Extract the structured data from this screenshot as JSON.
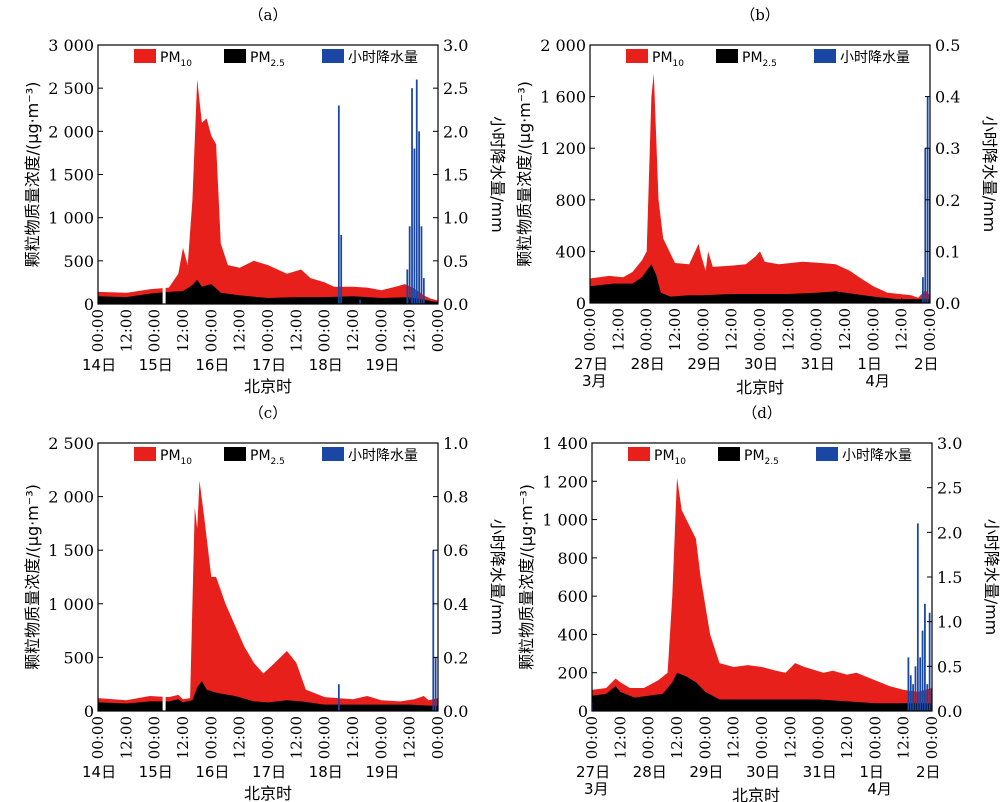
{
  "legend": {
    "pm10": "PM",
    "pm10_sub": "10",
    "pm25": "PM",
    "pm25_sub": "2.5",
    "precip": "小时降水量"
  },
  "colors": {
    "pm10": "#e8201c",
    "pm25": "#000000",
    "precip": "#1a47a3"
  },
  "chart_data": [
    {
      "panel": "（a）",
      "type": "area",
      "ylabel": "颗粒物质量浓度/(μg·m⁻³)",
      "y2label": "小时降水量/mm",
      "xlabel": "北京时",
      "ylim": [
        0,
        3000
      ],
      "yticks": [
        0,
        500,
        1000,
        1500,
        2000,
        2500,
        3000
      ],
      "ytick_labels": [
        "0",
        "500",
        "1 000",
        "1 500",
        "2 000",
        "2 500",
        "3 000"
      ],
      "y2lim": [
        0,
        3.0
      ],
      "y2ticks": [
        0,
        0.5,
        1.0,
        1.5,
        2.0,
        2.5,
        3.0
      ],
      "y2tick_labels": [
        "0.0",
        "0.5",
        "1.0",
        "1.5",
        "2.0",
        "2.5",
        "3.0"
      ],
      "xlim": [
        0,
        144
      ],
      "xticks": [
        0,
        12,
        24,
        36,
        48,
        60,
        72,
        84,
        96,
        108,
        120,
        132,
        144
      ],
      "xtick_labels": [
        "00:00",
        "12:00",
        "00:00",
        "12:00",
        "00:00",
        "12:00",
        "00:00",
        "12:00",
        "00:00",
        "12:00",
        "00:00",
        "12:00",
        "00:00"
      ],
      "day_labels": [
        {
          "h": 0,
          "t": "14日"
        },
        {
          "h": 24,
          "t": "15日"
        },
        {
          "h": 48,
          "t": "16日"
        },
        {
          "h": 72,
          "t": "17日"
        },
        {
          "h": 96,
          "t": "18日"
        },
        {
          "h": 120,
          "t": "19日"
        }
      ],
      "month_labels": [],
      "pm10": [
        [
          0,
          140
        ],
        [
          12,
          130
        ],
        [
          22,
          170
        ],
        [
          30,
          190
        ],
        [
          34,
          350
        ],
        [
          36,
          650
        ],
        [
          38,
          450
        ],
        [
          40,
          1200
        ],
        [
          42,
          2600
        ],
        [
          44,
          2100
        ],
        [
          46,
          2150
        ],
        [
          48,
          1950
        ],
        [
          50,
          1850
        ],
        [
          52,
          700
        ],
        [
          55,
          450
        ],
        [
          60,
          420
        ],
        [
          66,
          500
        ],
        [
          72,
          450
        ],
        [
          80,
          350
        ],
        [
          86,
          400
        ],
        [
          90,
          300
        ],
        [
          96,
          250
        ],
        [
          100,
          200
        ],
        [
          108,
          200
        ],
        [
          114,
          190
        ],
        [
          120,
          160
        ],
        [
          126,
          200
        ],
        [
          130,
          230
        ],
        [
          134,
          180
        ],
        [
          138,
          100
        ],
        [
          141,
          60
        ],
        [
          144,
          40
        ]
      ],
      "pm25": [
        [
          0,
          90
        ],
        [
          12,
          80
        ],
        [
          22,
          120
        ],
        [
          30,
          140
        ],
        [
          36,
          150
        ],
        [
          40,
          220
        ],
        [
          42,
          280
        ],
        [
          44,
          200
        ],
        [
          48,
          230
        ],
        [
          52,
          130
        ],
        [
          60,
          100
        ],
        [
          72,
          70
        ],
        [
          84,
          80
        ],
        [
          96,
          80
        ],
        [
          108,
          90
        ],
        [
          120,
          70
        ],
        [
          132,
          80
        ],
        [
          138,
          50
        ],
        [
          144,
          20
        ]
      ],
      "gaps": [
        28
      ],
      "precip": [
        [
          102,
          2.3
        ],
        [
          103,
          0.8
        ],
        [
          111,
          0.05
        ],
        [
          131,
          0.4
        ],
        [
          132,
          0.9
        ],
        [
          133,
          2.5
        ],
        [
          134,
          1.8
        ],
        [
          135,
          2.6
        ],
        [
          136,
          2.0
        ],
        [
          137,
          0.9
        ],
        [
          138,
          0.3
        ]
      ]
    },
    {
      "panel": "（b）",
      "type": "area",
      "ylabel": "颗粒物质量浓度/(μg·m⁻³)",
      "y2label": "小时降水量/mm",
      "xlabel": "北京时",
      "ylim": [
        0,
        2000
      ],
      "yticks": [
        0,
        400,
        800,
        1200,
        1600,
        2000
      ],
      "ytick_labels": [
        "0",
        "400",
        "800",
        "1 200",
        "1 600",
        "2 000"
      ],
      "y2lim": [
        0,
        0.5
      ],
      "y2ticks": [
        0,
        0.1,
        0.2,
        0.3,
        0.4,
        0.5
      ],
      "y2tick_labels": [
        "0.0",
        "0.1",
        "0.2",
        "0.3",
        "0.4",
        "0.5"
      ],
      "xlim": [
        0,
        144
      ],
      "xticks": [
        0,
        12,
        24,
        36,
        48,
        60,
        72,
        84,
        96,
        108,
        120,
        132,
        144
      ],
      "xtick_labels": [
        "00:00",
        "12:00",
        "00:00",
        "12:00",
        "00:00",
        "12:00",
        "00:00",
        "12:00",
        "00:00",
        "12:00",
        "00:00",
        "12:00",
        "00:00"
      ],
      "day_labels": [
        {
          "h": 0,
          "t": "27日"
        },
        {
          "h": 24,
          "t": "28日"
        },
        {
          "h": 48,
          "t": "29日"
        },
        {
          "h": 72,
          "t": "30日"
        },
        {
          "h": 96,
          "t": "31日"
        },
        {
          "h": 120,
          "t": "1日"
        },
        {
          "h": 144,
          "t": "2日"
        }
      ],
      "month_labels": [
        {
          "h": 0,
          "t": "3月"
        },
        {
          "h": 120,
          "t": "4月"
        }
      ],
      "pm10": [
        [
          0,
          190
        ],
        [
          8,
          210
        ],
        [
          14,
          200
        ],
        [
          18,
          240
        ],
        [
          22,
          330
        ],
        [
          24,
          400
        ],
        [
          26,
          1600
        ],
        [
          27,
          1780
        ],
        [
          29,
          800
        ],
        [
          31,
          500
        ],
        [
          36,
          310
        ],
        [
          42,
          300
        ],
        [
          46,
          460
        ],
        [
          47,
          370
        ],
        [
          49,
          250
        ],
        [
          50,
          400
        ],
        [
          52,
          280
        ],
        [
          60,
          290
        ],
        [
          66,
          300
        ],
        [
          70,
          360
        ],
        [
          72,
          400
        ],
        [
          74,
          320
        ],
        [
          80,
          300
        ],
        [
          90,
          320
        ],
        [
          98,
          310
        ],
        [
          104,
          300
        ],
        [
          110,
          250
        ],
        [
          114,
          200
        ],
        [
          120,
          130
        ],
        [
          126,
          80
        ],
        [
          136,
          60
        ],
        [
          139,
          40
        ],
        [
          142,
          100
        ],
        [
          144,
          60
        ]
      ],
      "pm25": [
        [
          0,
          130
        ],
        [
          10,
          150
        ],
        [
          18,
          150
        ],
        [
          22,
          200
        ],
        [
          26,
          300
        ],
        [
          28,
          220
        ],
        [
          30,
          80
        ],
        [
          34,
          50
        ],
        [
          42,
          60
        ],
        [
          48,
          60
        ],
        [
          60,
          70
        ],
        [
          72,
          70
        ],
        [
          84,
          70
        ],
        [
          96,
          80
        ],
        [
          104,
          90
        ],
        [
          112,
          70
        ],
        [
          120,
          50
        ],
        [
          130,
          30
        ],
        [
          139,
          30
        ],
        [
          144,
          30
        ]
      ],
      "gaps": [],
      "precip": [
        [
          141,
          0.05
        ],
        [
          142,
          0.3
        ],
        [
          143,
          0.4
        ],
        [
          144,
          0.3
        ]
      ]
    },
    {
      "panel": "（c）",
      "type": "area",
      "ylabel": "颗粒物质量浓度/(μg·m⁻³)",
      "y2label": "小时降水量/mm",
      "xlabel": "北京时",
      "ylim": [
        0,
        2500
      ],
      "yticks": [
        0,
        500,
        1000,
        1500,
        2000,
        2500
      ],
      "ytick_labels": [
        "0",
        "500",
        "1 000",
        "1 500",
        "2 000",
        "2 500"
      ],
      "y2lim": [
        0,
        1.0
      ],
      "y2ticks": [
        0,
        0.2,
        0.4,
        0.6,
        0.8,
        1.0
      ],
      "y2tick_labels": [
        "0.0",
        "0.2",
        "0.4",
        "0.6",
        "0.8",
        "1.0"
      ],
      "xlim": [
        0,
        144
      ],
      "xticks": [
        0,
        12,
        24,
        36,
        48,
        60,
        72,
        84,
        96,
        108,
        120,
        132,
        144
      ],
      "xtick_labels": [
        "00:00",
        "12:00",
        "00:00",
        "12:00",
        "00:00",
        "12:00",
        "00:00",
        "12:00",
        "00:00",
        "12:00",
        "00:00",
        "12:00",
        "00:00"
      ],
      "day_labels": [
        {
          "h": 0,
          "t": "14日"
        },
        {
          "h": 24,
          "t": "15日"
        },
        {
          "h": 48,
          "t": "16日"
        },
        {
          "h": 72,
          "t": "17日"
        },
        {
          "h": 96,
          "t": "18日"
        },
        {
          "h": 120,
          "t": "19日"
        }
      ],
      "month_labels": [],
      "pm10": [
        [
          0,
          120
        ],
        [
          12,
          100
        ],
        [
          22,
          140
        ],
        [
          30,
          130
        ],
        [
          34,
          150
        ],
        [
          36,
          110
        ],
        [
          39,
          120
        ],
        [
          41,
          1900
        ],
        [
          42,
          1700
        ],
        [
          43,
          2150
        ],
        [
          45,
          1800
        ],
        [
          48,
          1250
        ],
        [
          50,
          1250
        ],
        [
          54,
          1000
        ],
        [
          58,
          800
        ],
        [
          62,
          600
        ],
        [
          66,
          450
        ],
        [
          70,
          350
        ],
        [
          74,
          430
        ],
        [
          80,
          560
        ],
        [
          84,
          450
        ],
        [
          88,
          200
        ],
        [
          96,
          130
        ],
        [
          108,
          110
        ],
        [
          114,
          140
        ],
        [
          120,
          100
        ],
        [
          128,
          90
        ],
        [
          134,
          110
        ],
        [
          138,
          140
        ],
        [
          140,
          100
        ],
        [
          144,
          120
        ]
      ],
      "pm25": [
        [
          0,
          80
        ],
        [
          12,
          70
        ],
        [
          22,
          90
        ],
        [
          30,
          90
        ],
        [
          34,
          110
        ],
        [
          36,
          80
        ],
        [
          40,
          100
        ],
        [
          42,
          220
        ],
        [
          44,
          280
        ],
        [
          46,
          200
        ],
        [
          50,
          170
        ],
        [
          58,
          140
        ],
        [
          66,
          90
        ],
        [
          72,
          80
        ],
        [
          80,
          100
        ],
        [
          86,
          90
        ],
        [
          96,
          60
        ],
        [
          108,
          60
        ],
        [
          120,
          60
        ],
        [
          132,
          60
        ],
        [
          140,
          50
        ],
        [
          144,
          50
        ]
      ],
      "gaps": [
        28
      ],
      "precip": [
        [
          102,
          0.1
        ],
        [
          142,
          0.6
        ],
        [
          143,
          0.2
        ]
      ]
    },
    {
      "panel": "（d）",
      "type": "area",
      "ylabel": "颗粒物质量浓度/(μg·m⁻³)",
      "y2label": "小时降水量/mm",
      "xlabel": "北京时",
      "ylim": [
        0,
        1400
      ],
      "yticks": [
        0,
        200,
        400,
        600,
        800,
        1000,
        1200,
        1400
      ],
      "ytick_labels": [
        "0",
        "200",
        "400",
        "600",
        "800",
        "1 000",
        "1 200",
        "1 400"
      ],
      "y2lim": [
        0,
        3.0
      ],
      "y2ticks": [
        0,
        0.5,
        1.0,
        1.5,
        2.0,
        2.5,
        3.0
      ],
      "y2tick_labels": [
        "0.0",
        "0.5",
        "1.0",
        "1.5",
        "2.0",
        "2.5",
        "3.0"
      ],
      "xlim": [
        0,
        144
      ],
      "xticks": [
        0,
        12,
        24,
        36,
        48,
        60,
        72,
        84,
        96,
        108,
        120,
        132,
        144
      ],
      "xtick_labels": [
        "00:00",
        "12:00",
        "00:00",
        "12:00",
        "00:00",
        "12:00",
        "00:00",
        "12:00",
        "00:00",
        "12:00",
        "00:00",
        "12:00",
        "00:00"
      ],
      "day_labels": [
        {
          "h": 0,
          "t": "27日"
        },
        {
          "h": 24,
          "t": "28日"
        },
        {
          "h": 48,
          "t": "29日"
        },
        {
          "h": 72,
          "t": "30日"
        },
        {
          "h": 96,
          "t": "31日"
        },
        {
          "h": 120,
          "t": "1日"
        },
        {
          "h": 144,
          "t": "2日"
        }
      ],
      "month_labels": [
        {
          "h": 0,
          "t": "3月"
        },
        {
          "h": 120,
          "t": "4月"
        }
      ],
      "pm10": [
        [
          0,
          110
        ],
        [
          6,
          120
        ],
        [
          10,
          170
        ],
        [
          12,
          150
        ],
        [
          16,
          120
        ],
        [
          22,
          120
        ],
        [
          28,
          160
        ],
        [
          32,
          200
        ],
        [
          34,
          600
        ],
        [
          36,
          1220
        ],
        [
          38,
          1050
        ],
        [
          40,
          1000
        ],
        [
          44,
          900
        ],
        [
          46,
          700
        ],
        [
          50,
          400
        ],
        [
          54,
          250
        ],
        [
          60,
          230
        ],
        [
          66,
          240
        ],
        [
          72,
          230
        ],
        [
          78,
          210
        ],
        [
          82,
          200
        ],
        [
          86,
          250
        ],
        [
          90,
          230
        ],
        [
          98,
          200
        ],
        [
          102,
          210
        ],
        [
          108,
          190
        ],
        [
          112,
          200
        ],
        [
          120,
          160
        ],
        [
          126,
          130
        ],
        [
          132,
          110
        ],
        [
          138,
          100
        ],
        [
          144,
          120
        ]
      ],
      "pm25": [
        [
          0,
          80
        ],
        [
          6,
          90
        ],
        [
          10,
          130
        ],
        [
          12,
          100
        ],
        [
          18,
          70
        ],
        [
          24,
          80
        ],
        [
          30,
          90
        ],
        [
          34,
          150
        ],
        [
          36,
          200
        ],
        [
          40,
          180
        ],
        [
          44,
          150
        ],
        [
          48,
          100
        ],
        [
          54,
          60
        ],
        [
          60,
          60
        ],
        [
          72,
          60
        ],
        [
          84,
          60
        ],
        [
          96,
          60
        ],
        [
          108,
          50
        ],
        [
          120,
          40
        ],
        [
          132,
          40
        ],
        [
          144,
          40
        ]
      ],
      "gaps": [],
      "precip": [
        [
          0,
          0.1
        ],
        [
          134,
          0.6
        ],
        [
          135,
          0.4
        ],
        [
          136,
          0.3
        ],
        [
          137,
          0.5
        ],
        [
          138,
          2.1
        ],
        [
          139,
          0.6
        ],
        [
          140,
          0.9
        ],
        [
          141,
          1.2
        ],
        [
          142,
          0.3
        ],
        [
          143,
          1.1
        ],
        [
          144,
          0.2
        ]
      ]
    }
  ]
}
